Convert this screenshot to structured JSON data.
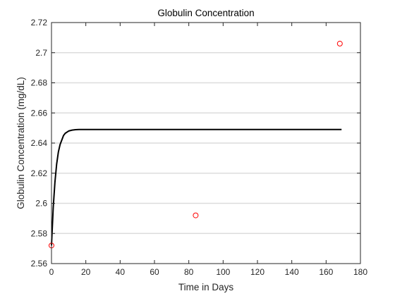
{
  "chart_data": {
    "type": "line",
    "title": "Globulin Concentration",
    "xlabel": "Time in Days",
    "ylabel": "Globulin Concentration (mg/dL)",
    "xlim": [
      0,
      180
    ],
    "ylim": [
      2.56,
      2.72
    ],
    "xticks": [
      0,
      20,
      40,
      60,
      80,
      100,
      120,
      140,
      160,
      180
    ],
    "yticks": [
      2.56,
      2.58,
      2.6,
      2.62,
      2.64,
      2.66,
      2.68,
      2.7,
      2.72
    ],
    "grid": "horizontal",
    "series": [
      {
        "kind": "line",
        "color": "#000000",
        "x": [
          0,
          1,
          2,
          3,
          4,
          5,
          6,
          7,
          8,
          10,
          12,
          14,
          16,
          18,
          20,
          30,
          50,
          100,
          150,
          169
        ],
        "y": [
          2.572,
          2.597,
          2.614,
          2.626,
          2.634,
          2.639,
          2.642,
          2.645,
          2.6465,
          2.648,
          2.6486,
          2.6489,
          2.649,
          2.649,
          2.649,
          2.649,
          2.649,
          2.649,
          2.649,
          2.649
        ]
      },
      {
        "kind": "scatter",
        "color": "#ff0000",
        "marker": "circle",
        "x": [
          0,
          84,
          168
        ],
        "y": [
          2.572,
          2.592,
          2.706
        ]
      }
    ]
  }
}
